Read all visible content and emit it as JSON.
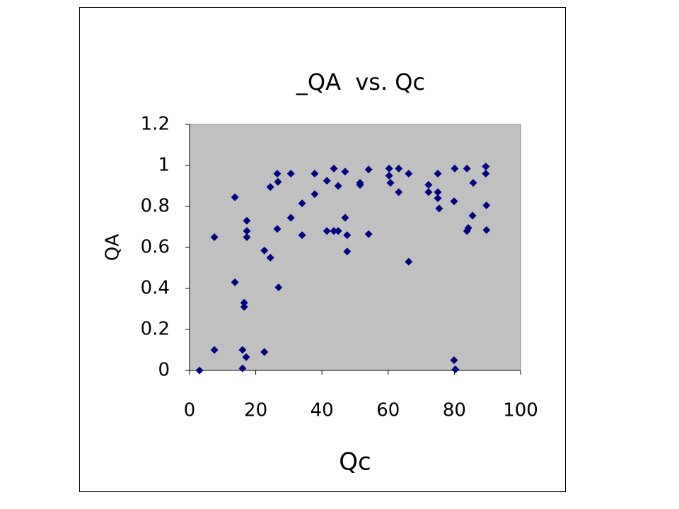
{
  "chart_data": {
    "type": "scatter",
    "title": "_QA  vs. Qc",
    "x_label": "Qc",
    "y_label": "QA",
    "x": [
      3.0,
      7.5,
      7.5,
      13.7,
      13.7,
      16.0,
      16.5,
      16.5,
      16.0,
      17.1,
      17.3,
      17.3,
      17.3,
      22.6,
      22.6,
      24.4,
      24.4,
      26.5,
      26.7,
      26.5,
      26.9,
      30.6,
      30.6,
      34.0,
      34.0,
      37.8,
      37.8,
      41.5,
      41.5,
      43.6,
      43.6,
      44.9,
      44.9,
      47.0,
      47.0,
      47.6,
      47.6,
      51.5,
      51.5,
      54.1,
      54.1,
      60.3,
      60.3,
      60.7,
      63.2,
      63.2,
      66.2,
      66.2,
      72.2,
      72.2,
      75.0,
      75.0,
      75.0,
      75.4,
      80.1,
      79.9,
      79.9,
      80.3,
      83.8,
      83.8,
      84.2,
      85.7,
      85.5,
      89.5,
      89.5,
      89.7,
      89.7
    ],
    "values": [
      0,
      0.65,
      0.1,
      0.845,
      0.43,
      0.1,
      0.33,
      0.31,
      0.01,
      0.065,
      0.73,
      0.68,
      0.65,
      0.585,
      0.09,
      0.895,
      0.55,
      0.96,
      0.92,
      0.69,
      0.405,
      0.96,
      0.745,
      0.815,
      0.66,
      0.96,
      0.86,
      0.925,
      0.68,
      0.985,
      0.68,
      0.9,
      0.68,
      0.97,
      0.745,
      0.66,
      0.58,
      0.915,
      0.905,
      0.98,
      0.665,
      0.985,
      0.95,
      0.915,
      0.985,
      0.87,
      0.96,
      0.53,
      0.905,
      0.87,
      0.96,
      0.87,
      0.84,
      0.79,
      0.985,
      0.825,
      0.05,
      0.005,
      0.985,
      0.68,
      0.695,
      0.915,
      0.755,
      0.995,
      0.96,
      0.805,
      0.685
    ],
    "color": "#000080",
    "plot_background": "#c0c0c0",
    "xlim": [
      0,
      100
    ],
    "xticks": [
      0,
      20,
      40,
      60,
      80,
      100
    ],
    "ylim": [
      0,
      1.2
    ],
    "yticks": [
      0,
      0.2,
      0.4,
      0.6,
      0.8,
      1,
      1.2
    ]
  }
}
